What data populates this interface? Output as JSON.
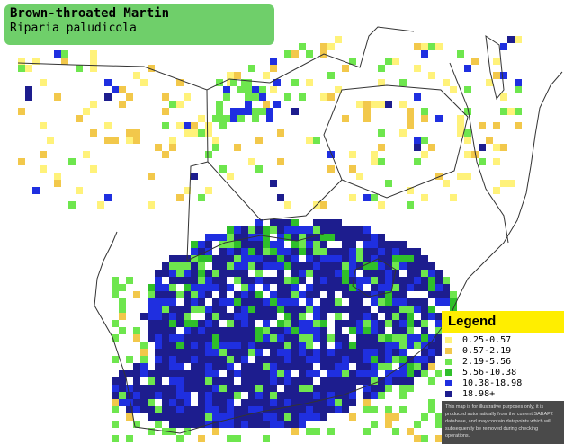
{
  "title": {
    "common_name": "Brown-throated Martin",
    "scientific_name": "Riparia paludicola",
    "box_color": "#6fcf6a"
  },
  "legend": {
    "title": "Legend",
    "header_color": "#ffee00",
    "entries": [
      {
        "label": "0.25-0.57",
        "color": "#fff27a"
      },
      {
        "label": "0.57-2.19",
        "color": "#f2c84b"
      },
      {
        "label": "2.19-5.56",
        "color": "#6ee64e"
      },
      {
        "label": "5.56-10.38",
        "color": "#2fbf2a"
      },
      {
        "label": "10.38-18.98",
        "color": "#1f2fe0"
      },
      {
        "label": "18.98+",
        "color": "#1d1d8e"
      }
    ],
    "disclaimer": "This map is for illustrative purposes only; it is produced automatically from the current SABAP2 database, and may contain datapoints which will subsequently be removed during checking operations."
  },
  "map": {
    "region": "Southern Africa",
    "land_color": "#ffffff",
    "border_color": "#333333"
  }
}
